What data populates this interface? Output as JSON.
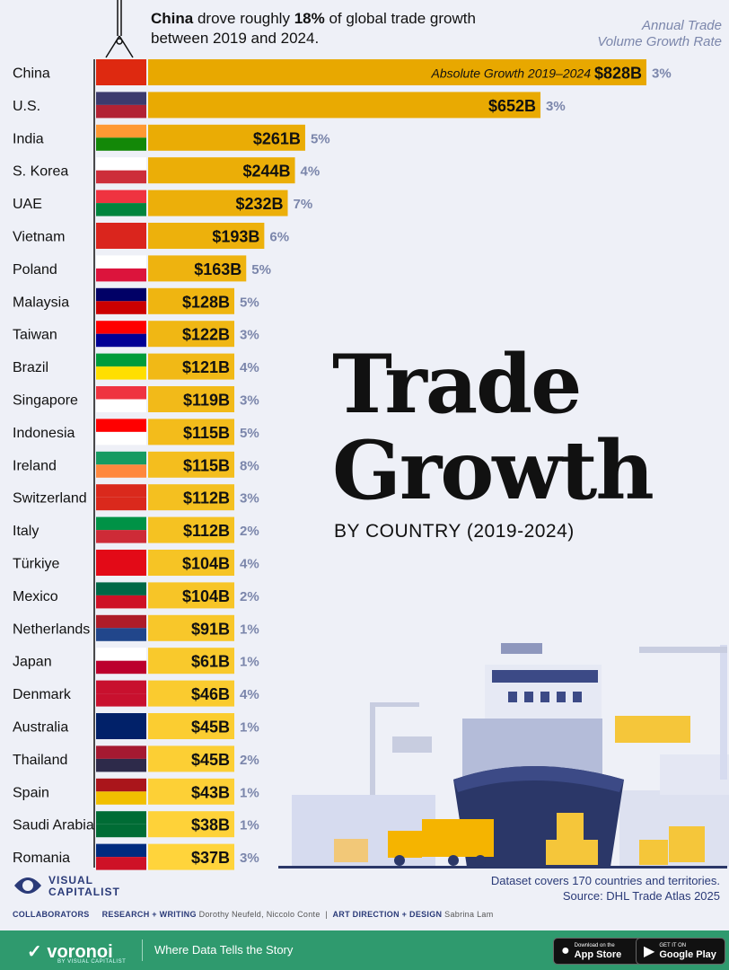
{
  "annotation": {
    "bold1": "China",
    "text1": " drove roughly ",
    "bold2": "18%",
    "text2": " of global trade growth between 2019 and 2024."
  },
  "rate_header": {
    "line1": "Annual Trade",
    "line2": "Volume Growth Rate"
  },
  "title": {
    "line1": "Trade",
    "line2": "Growth",
    "subtitle": "BY COUNTRY (2019-2024)"
  },
  "chart_data": {
    "type": "bar",
    "orientation": "horizontal",
    "title": "Trade Growth by Country (2019-2024)",
    "bar_inline_label": "Absolute Growth 2019–2024",
    "unit": "$B",
    "categories": [
      "China",
      "U.S.",
      "India",
      "S. Korea",
      "UAE",
      "Vietnam",
      "Poland",
      "Malaysia",
      "Taiwan",
      "Brazil",
      "Singapore",
      "Indonesia",
      "Ireland",
      "Switzerland",
      "Italy",
      "Türkiye",
      "Mexico",
      "Netherlands",
      "Japan",
      "Denmark",
      "Australia",
      "Thailand",
      "Spain",
      "Saudi Arabia",
      "Romania"
    ],
    "series": [
      {
        "name": "Absolute Growth 2019–2024",
        "values": [
          828,
          652,
          261,
          244,
          232,
          193,
          163,
          128,
          122,
          121,
          119,
          115,
          115,
          112,
          112,
          104,
          104,
          91,
          61,
          46,
          45,
          45,
          43,
          38,
          37
        ],
        "labels": [
          "$828B",
          "$652B",
          "$261B",
          "$244B",
          "$232B",
          "$193B",
          "$163B",
          "$128B",
          "$122B",
          "$121B",
          "$119B",
          "$115B",
          "$115B",
          "$112B",
          "$112B",
          "$104B",
          "$104B",
          "$91B",
          "$61B",
          "$46B",
          "$45B",
          "$45B",
          "$43B",
          "$38B",
          "$37B"
        ]
      },
      {
        "name": "Annual Trade Volume Growth Rate",
        "values": [
          3,
          3,
          5,
          4,
          7,
          6,
          5,
          5,
          3,
          4,
          3,
          5,
          8,
          3,
          2,
          4,
          2,
          1,
          1,
          4,
          1,
          2,
          1,
          1,
          3
        ],
        "labels": [
          "3%",
          "3%",
          "5%",
          "4%",
          "7%",
          "6%",
          "5%",
          "5%",
          "3%",
          "4%",
          "3%",
          "5%",
          "8%",
          "3%",
          "2%",
          "4%",
          "2%",
          "1%",
          "1%",
          "4%",
          "1%",
          "2%",
          "1%",
          "1%",
          "3%"
        ]
      }
    ],
    "bar_color_top": "#e8a800",
    "bar_color_bottom": "#ffd43b",
    "rate_color": "#7b86ab"
  },
  "footer": {
    "dataset_note": "Dataset covers 170 countries and territories.",
    "source": "Source: DHL Trade Atlas 2025",
    "brand_line1": "VISUAL",
    "brand_line2": "CAPITALIST",
    "collab_label": "COLLABORATORS",
    "research_label": "RESEARCH + WRITING",
    "research_names": "Dorothy Neufeld, Niccolo Conte",
    "design_label": "ART DIRECTION + DESIGN",
    "design_names": "Sabrina Lam",
    "voronoi": "voronoi",
    "voronoi_sub": "BY VISUAL CAPITALIST",
    "tagline": "Where Data Tells the Story",
    "app_store_small": "Download on the",
    "app_store_big": "App Store",
    "google_small": "GET IT ON",
    "google_big": "Google Play"
  },
  "colors": {
    "footer_green": "#2f9a6e",
    "brand_navy": "#2a3a78",
    "background": "#eef0f7"
  }
}
